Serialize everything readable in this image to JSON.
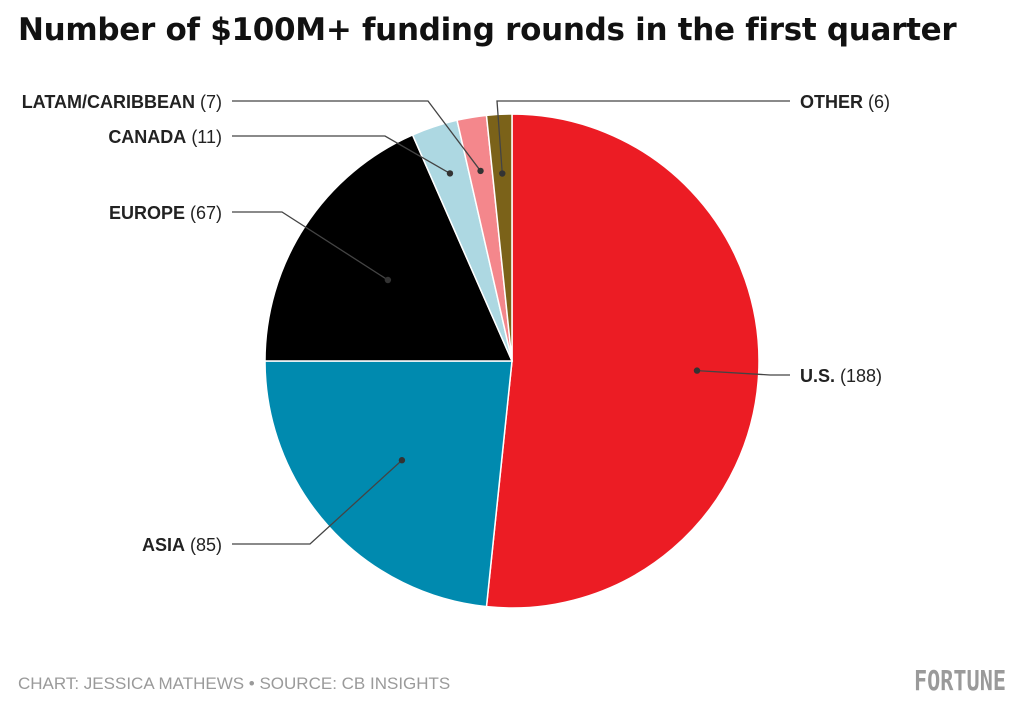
{
  "chart_data": {
    "type": "pie",
    "title": "Number of $100M+ funding rounds in the first quarter",
    "slices": [
      {
        "label": "U.S.",
        "value": 188,
        "color": "#ec1c24"
      },
      {
        "label": "ASIA",
        "value": 85,
        "color": "#008aaf"
      },
      {
        "label": "EUROPE",
        "value": 67,
        "color": "#000000"
      },
      {
        "label": "CANADA",
        "value": 11,
        "color": "#add8e2"
      },
      {
        "label": "LATAM/CARIBBEAN",
        "value": 7,
        "color": "#f4878c"
      },
      {
        "label": "OTHER",
        "value": 6,
        "color": "#7b6219"
      }
    ]
  },
  "footer": {
    "credit": "CHART: JESSICA MATHEWS • SOURCE: CB INSIGHTS",
    "logo": "FORTUNE"
  }
}
